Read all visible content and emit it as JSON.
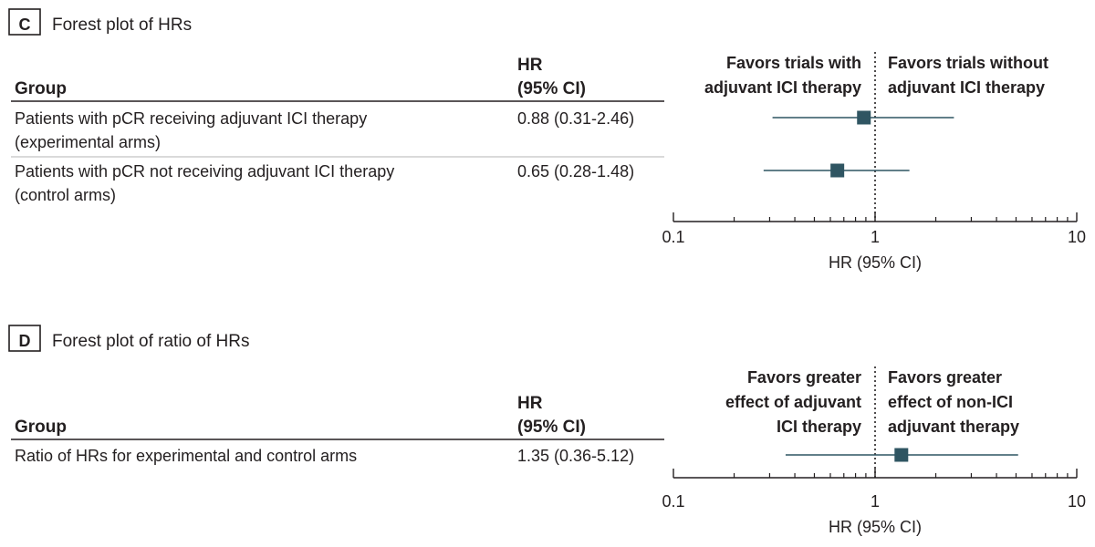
{
  "panels": [
    {
      "letter": "C",
      "title": "Forest plot of HRs",
      "group_header": "Group",
      "hr_header": [
        "HR",
        "(95% CI)"
      ],
      "favors_left": [
        "Favors trials with",
        "adjuvant ICI therapy"
      ],
      "favors_right": [
        "Favors trials without",
        "adjuvant ICI therapy"
      ],
      "rows": [
        {
          "label": [
            "Patients with pCR receiving adjuvant ICI therapy",
            "(experimental arms)"
          ],
          "hr_text": "0.88 (0.31-2.46)"
        },
        {
          "label": [
            "Patients with pCR not receiving adjuvant ICI therapy",
            "(control arms)"
          ],
          "hr_text": "0.65 (0.28-1.48)"
        }
      ],
      "x_ticks": [
        "0.1",
        "1",
        "10"
      ],
      "x_label": "HR (95% CI)"
    },
    {
      "letter": "D",
      "title": "Forest plot of ratio of HRs",
      "group_header": "Group",
      "hr_header": [
        "HR",
        "(95% CI)"
      ],
      "favors_left": [
        "Favors greater",
        "effect of adjuvant",
        "ICI therapy"
      ],
      "favors_right": [
        "Favors greater",
        "effect of non-ICI",
        "adjuvant therapy"
      ],
      "rows": [
        {
          "label": [
            "Ratio of HRs for experimental and control arms"
          ],
          "hr_text": "1.35 (0.36-5.12)"
        }
      ],
      "x_ticks": [
        "0.1",
        "1",
        "10"
      ],
      "x_label": "HR (95% CI)"
    }
  ],
  "chart_data": [
    {
      "type": "forest",
      "title": "Forest plot of HRs",
      "xlabel": "HR (95% CI)",
      "xscale": "log",
      "xlim": [
        0.1,
        10
      ],
      "reference_line": 1,
      "marker_color": "#2f5562",
      "series": [
        {
          "name": "Patients with pCR receiving adjuvant ICI therapy (experimental arms)",
          "hr": 0.88,
          "ci_low": 0.31,
          "ci_high": 2.46
        },
        {
          "name": "Patients with pCR not receiving adjuvant ICI therapy (control arms)",
          "hr": 0.65,
          "ci_low": 0.28,
          "ci_high": 1.48
        }
      ]
    },
    {
      "type": "forest",
      "title": "Forest plot of ratio of HRs",
      "xlabel": "HR (95% CI)",
      "xscale": "log",
      "xlim": [
        0.1,
        10
      ],
      "reference_line": 1,
      "marker_color": "#2f5562",
      "series": [
        {
          "name": "Ratio of HRs for experimental and control arms",
          "hr": 1.35,
          "ci_low": 0.36,
          "ci_high": 5.12
        }
      ]
    }
  ]
}
